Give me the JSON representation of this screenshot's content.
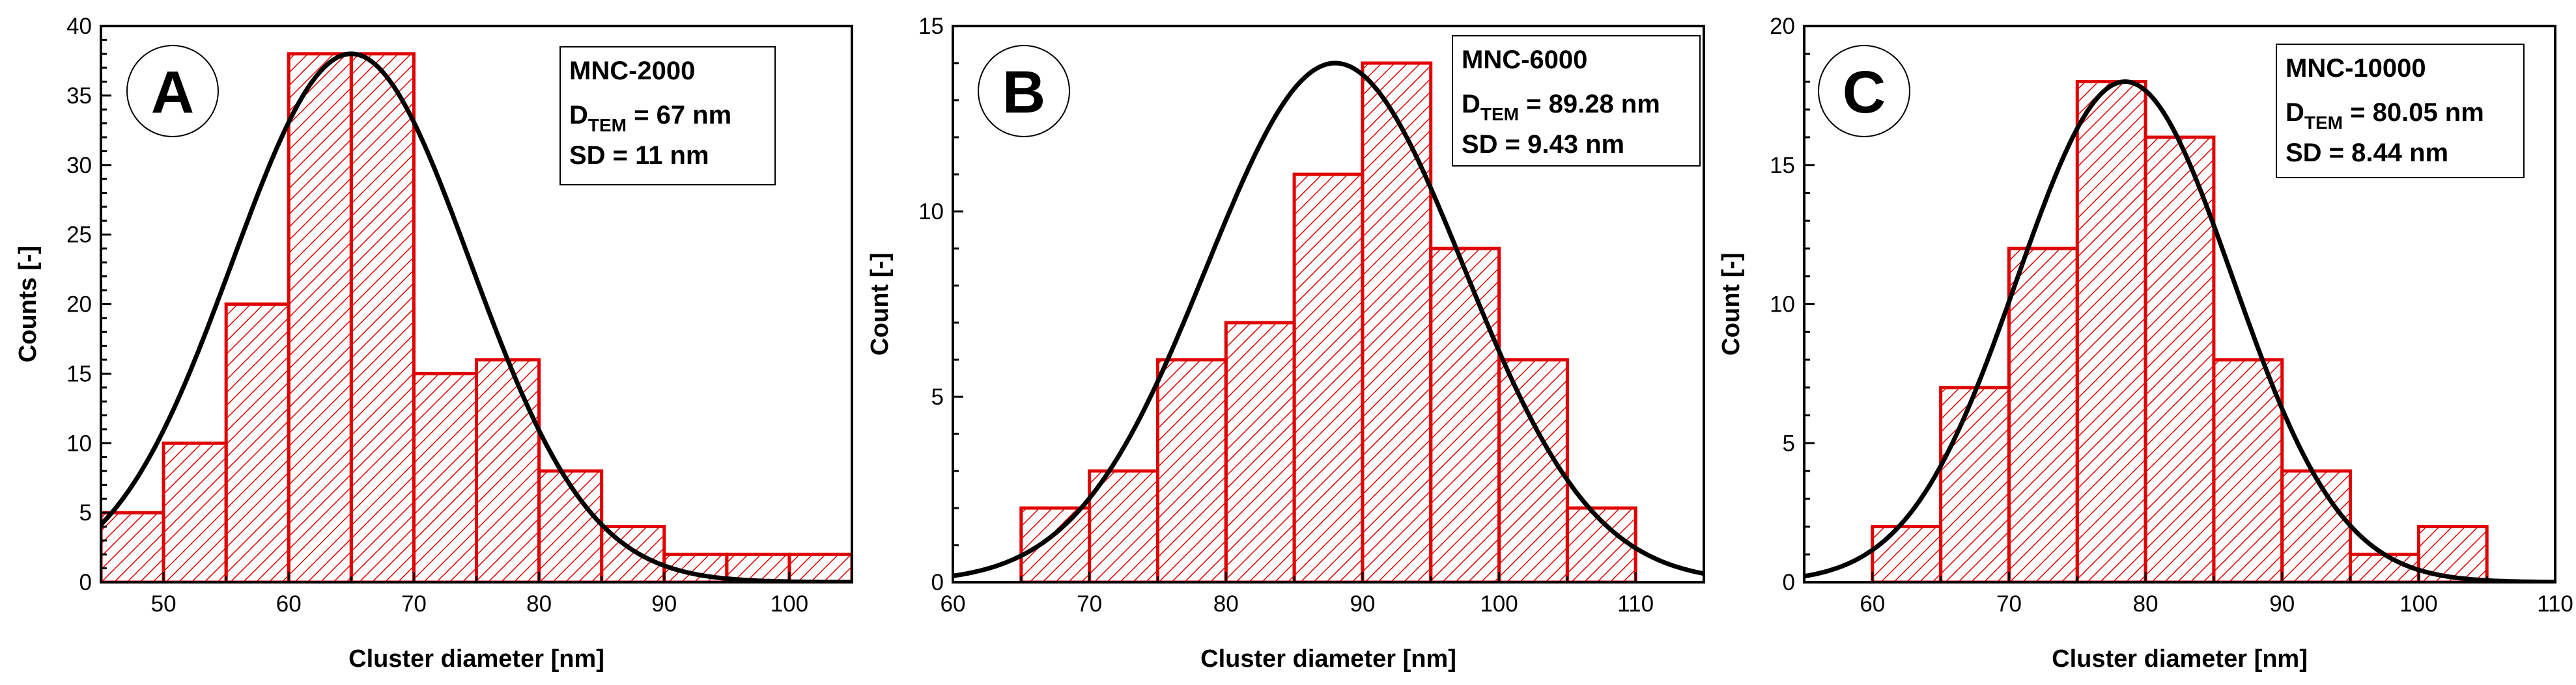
{
  "chart_data": [
    {
      "type": "bar",
      "panel_label": "A",
      "sample": "MNC-2000",
      "d_label": "D",
      "d_sub": "TEM",
      "d_value": " = 67 nm",
      "sd_text": "SD = 11 nm",
      "xlabel": "Cluster diameter [nm]",
      "ylabel": "Counts [-]",
      "xlim": [
        45,
        105
      ],
      "ylim": [
        0,
        40
      ],
      "xticks": [
        50,
        60,
        70,
        80,
        90,
        100
      ],
      "yticks": [
        0,
        5,
        10,
        15,
        20,
        25,
        30,
        35,
        40
      ],
      "bin_edges": [
        45,
        50,
        55,
        60,
        65,
        70,
        75,
        80,
        85,
        90,
        95,
        100,
        105
      ],
      "counts": [
        5,
        10,
        20,
        38,
        38,
        15,
        16,
        8,
        4,
        2,
        2,
        2
      ],
      "fit": {
        "type": "gaussian",
        "center": 65,
        "sigma": 9.5,
        "amplitude": 38
      },
      "legend_position": "top-right",
      "bar_color": "#e00000",
      "curve_color": "#000000"
    },
    {
      "type": "bar",
      "panel_label": "B",
      "sample": "MNC-6000",
      "d_label": "D",
      "d_sub": "TEM",
      "d_value": " = 89.28 nm",
      "sd_text": "SD = 9.43 nm",
      "xlabel": "Cluster diameter [nm]",
      "ylabel": "Count [-]",
      "xlim": [
        60,
        115
      ],
      "ylim": [
        0,
        15
      ],
      "xticks": [
        60,
        70,
        80,
        90,
        100,
        110
      ],
      "yticks": [
        0,
        5,
        10,
        15
      ],
      "bin_edges": [
        65,
        70,
        75,
        80,
        85,
        90,
        95,
        100,
        105,
        110
      ],
      "counts": [
        2,
        3,
        6,
        7,
        11,
        14,
        9,
        6,
        2
      ],
      "fit": {
        "type": "gaussian",
        "center": 88,
        "sigma": 9.43,
        "amplitude": 14
      },
      "legend_position": "top-right",
      "bar_color": "#e00000",
      "curve_color": "#000000"
    },
    {
      "type": "bar",
      "panel_label": "C",
      "sample": "MNC-10000",
      "d_label": "D",
      "d_sub": "TEM",
      "d_value": " = 80.05 nm",
      "sd_text": "SD = 8.44 nm",
      "xlabel": "Cluster diameter [nm]",
      "ylabel": "Count [-]",
      "xlim": [
        55,
        110
      ],
      "ylim": [
        0,
        20
      ],
      "xticks": [
        60,
        70,
        80,
        90,
        100,
        110
      ],
      "yticks": [
        0,
        5,
        10,
        15,
        20
      ],
      "bin_edges": [
        60,
        65,
        70,
        75,
        80,
        85,
        90,
        95,
        100,
        105
      ],
      "counts": [
        2,
        7,
        12,
        18,
        16,
        8,
        4,
        1,
        2
      ],
      "fit": {
        "type": "gaussian",
        "center": 78.5,
        "sigma": 7.9,
        "amplitude": 18
      },
      "legend_position": "top-right",
      "bar_color": "#e00000",
      "curve_color": "#000000"
    }
  ]
}
